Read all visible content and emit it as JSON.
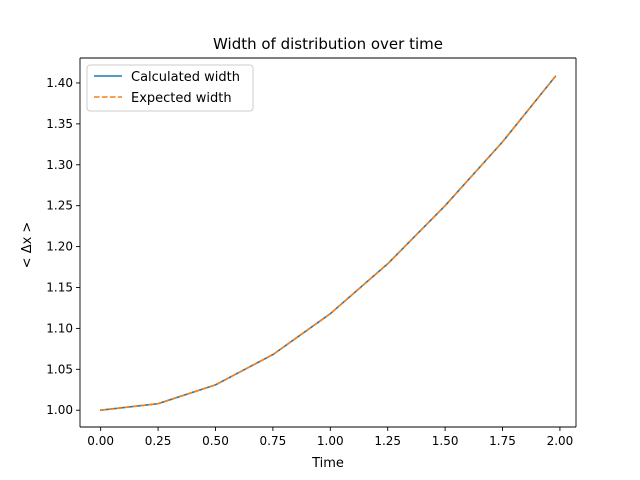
{
  "chart_data": {
    "type": "line",
    "title": "Width of distribution over time",
    "xlabel": "Time",
    "ylabel": "< Δx >",
    "xlim": [
      -0.09,
      2.07
    ],
    "ylim": [
      0.9795,
      1.4305
    ],
    "xticks": [
      0.0,
      0.25,
      0.5,
      0.75,
      1.0,
      1.25,
      1.5,
      1.75,
      2.0
    ],
    "xtick_labels": [
      "0.00",
      "0.25",
      "0.50",
      "0.75",
      "1.00",
      "1.25",
      "1.50",
      "1.75",
      "2.00"
    ],
    "yticks": [
      1.0,
      1.05,
      1.1,
      1.15,
      1.2,
      1.25,
      1.3,
      1.35,
      1.4
    ],
    "ytick_labels": [
      "1.00",
      "1.05",
      "1.10",
      "1.15",
      "1.20",
      "1.25",
      "1.30",
      "1.35",
      "1.40"
    ],
    "grid": false,
    "legend": "top-left",
    "x": [
      0.0,
      0.25,
      0.5,
      0.75,
      1.0,
      1.25,
      1.5,
      1.75,
      1.98
    ],
    "series": [
      {
        "name": "Calculated width",
        "color": "#1f77b4",
        "style": "solid",
        "values": [
          1.0,
          1.008,
          1.031,
          1.068,
          1.118,
          1.179,
          1.25,
          1.328,
          1.408
        ]
      },
      {
        "name": "Expected width",
        "color": "#ff7f0e",
        "style": "dashed",
        "values": [
          1.0,
          1.008,
          1.031,
          1.068,
          1.118,
          1.179,
          1.25,
          1.328,
          1.408
        ]
      }
    ]
  }
}
